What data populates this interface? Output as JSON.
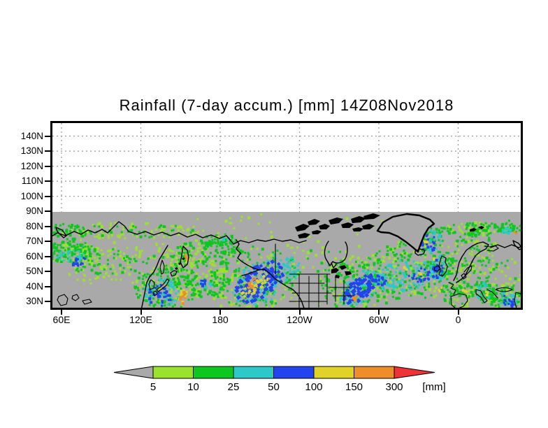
{
  "chart_data": {
    "type": "heatmap",
    "title": "Rainfall (7-day accum.) [mm] 14Z08Nov2018",
    "y_ticks": [
      "140N",
      "130N",
      "120N",
      "110N",
      "100N",
      "90N",
      "80N",
      "70N",
      "60N",
      "50N",
      "40N",
      "30N"
    ],
    "x_ticks": [
      "60E",
      "120E",
      "180",
      "120W",
      "60W",
      "0"
    ],
    "grid": "dotted",
    "no_data_fill": "#ffffff",
    "background_fill_below_90N": "#a9a9a9",
    "colorbar": {
      "labels": [
        "5",
        "10",
        "25",
        "50",
        "100",
        "150",
        "300"
      ],
      "unit": "[mm]",
      "levels_mm": [
        5,
        10,
        25,
        50,
        100,
        150,
        300
      ],
      "segment_colors": [
        "#9be22e",
        "#0cc81e",
        "#2dc9c9",
        "#2343ee",
        "#e0d229",
        "#ee8d2a"
      ],
      "below_min_color": "#a9a9a9",
      "above_max_color": "#ee3236"
    },
    "level_colors": {
      "p5": "#9be22e",
      "p10": "#0cc81e",
      "p25": "#2dc9c9",
      "p50": "#2343ee",
      "p100": "#e0d229",
      "p150": "#ee8d2a"
    },
    "rain_clusters_format": [
      "cx",
      "cy",
      "rx",
      "ry",
      "count",
      "level",
      "rot_deg(optional)",
      "speck(optional)"
    ],
    "rain_clusters": [
      [
        338,
        200,
        330,
        68,
        130,
        "p5"
      ],
      [
        110,
        157,
        115,
        12,
        80,
        "p5"
      ],
      [
        110,
        157,
        105,
        10,
        45,
        "p10"
      ],
      [
        25,
        160,
        30,
        14,
        45,
        "p10"
      ],
      [
        30,
        188,
        38,
        16,
        110,
        "p10"
      ],
      [
        32,
        190,
        42,
        18,
        60,
        "p5"
      ],
      [
        28,
        193,
        20,
        9,
        25,
        "p25"
      ],
      [
        42,
        202,
        13,
        7,
        16,
        "p50"
      ],
      [
        70,
        207,
        58,
        24,
        70,
        "p5"
      ],
      [
        73,
        202,
        50,
        20,
        40,
        "p10"
      ],
      [
        160,
        196,
        58,
        22,
        40,
        "p5"
      ],
      [
        150,
        206,
        40,
        15,
        18,
        "p10"
      ],
      [
        200,
        196,
        28,
        22,
        60,
        "p10"
      ],
      [
        204,
        198,
        30,
        24,
        45,
        "p5"
      ],
      [
        194,
        193,
        3,
        5,
        4,
        "p150"
      ],
      [
        196,
        201,
        4,
        4,
        5,
        "p100"
      ],
      [
        240,
        172,
        26,
        10,
        28,
        "p10"
      ],
      [
        165,
        240,
        45,
        30,
        140,
        "p10"
      ],
      [
        170,
        236,
        50,
        32,
        70,
        "p5"
      ],
      [
        160,
        246,
        26,
        20,
        55,
        "p25"
      ],
      [
        157,
        249,
        18,
        16,
        32,
        "p50"
      ],
      [
        191,
        253,
        5,
        10,
        10,
        "p150"
      ],
      [
        189,
        249,
        7,
        12,
        12,
        "p100"
      ],
      [
        221,
        231,
        6,
        6,
        9,
        "p50"
      ],
      [
        222,
        232,
        9,
        8,
        12,
        "p25"
      ],
      [
        227,
        236,
        34,
        17,
        60,
        "p10"
      ],
      [
        242,
        222,
        30,
        12,
        35,
        "p5"
      ],
      [
        290,
        222,
        68,
        45,
        150,
        "p10"
      ],
      [
        286,
        226,
        72,
        47,
        85,
        "p5"
      ],
      [
        303,
        228,
        48,
        30,
        100,
        "p25",
        -35
      ],
      [
        300,
        230,
        40,
        22,
        110,
        "p50",
        -35,
        4
      ],
      [
        292,
        237,
        26,
        7,
        36,
        "p100",
        -38
      ],
      [
        288,
        233,
        10,
        5,
        12,
        "p150",
        -38
      ],
      [
        250,
        170,
        16,
        8,
        22,
        "p10"
      ],
      [
        249,
        169,
        5,
        3,
        5,
        "p25"
      ],
      [
        240,
        166,
        2,
        2,
        2,
        "p100"
      ],
      [
        240,
        181,
        28,
        13,
        35,
        "p10"
      ],
      [
        345,
        211,
        13,
        18,
        26,
        "p25",
        -25
      ],
      [
        390,
        196,
        55,
        34,
        26,
        "p5"
      ],
      [
        396,
        206,
        45,
        24,
        13,
        "p10"
      ],
      [
        441,
        235,
        55,
        38,
        140,
        "p10"
      ],
      [
        446,
        231,
        60,
        40,
        70,
        "p5"
      ],
      [
        442,
        240,
        34,
        22,
        75,
        "p25",
        -40
      ],
      [
        443,
        240,
        28,
        14,
        75,
        "p50",
        -40,
        4
      ],
      [
        437,
        253,
        4,
        6,
        7,
        "p150"
      ],
      [
        472,
        227,
        9,
        8,
        13,
        "p50"
      ],
      [
        474,
        228,
        12,
        10,
        13,
        "p25"
      ],
      [
        515,
        214,
        68,
        42,
        160,
        "p10"
      ],
      [
        520,
        211,
        72,
        45,
        85,
        "p5"
      ],
      [
        505,
        222,
        45,
        22,
        85,
        "p25",
        -10
      ],
      [
        532,
        220,
        22,
        10,
        28,
        "p50",
        -15
      ],
      [
        542,
        175,
        14,
        12,
        22,
        "p50"
      ],
      [
        545,
        172,
        18,
        16,
        22,
        "p25"
      ],
      [
        540,
        169,
        22,
        20,
        28,
        "p10"
      ],
      [
        538,
        175,
        3,
        3,
        3,
        "p100"
      ],
      [
        508,
        212,
        3,
        3,
        3,
        "p100"
      ],
      [
        528,
        217,
        3,
        3,
        3,
        "p100"
      ],
      [
        558,
        241,
        3,
        3,
        3,
        "p100"
      ],
      [
        550,
        197,
        3,
        3,
        3,
        "p100"
      ],
      [
        540,
        160,
        25,
        13,
        35,
        "p10",
        25
      ],
      [
        560,
        207,
        18,
        22,
        55,
        "p10"
      ],
      [
        554,
        212,
        8,
        14,
        22,
        "p50"
      ],
      [
        556,
        210,
        12,
        18,
        28,
        "p25"
      ],
      [
        580,
        245,
        22,
        20,
        45,
        "p10"
      ],
      [
        586,
        248,
        25,
        20,
        28,
        "p5"
      ],
      [
        593,
        244,
        3,
        3,
        3,
        "p100"
      ],
      [
        618,
        242,
        16,
        20,
        45,
        "p10"
      ],
      [
        620,
        245,
        10,
        14,
        18,
        "p25"
      ],
      [
        625,
        246,
        3,
        3,
        3,
        "p100"
      ],
      [
        605,
        185,
        28,
        35,
        55,
        "p10"
      ],
      [
        610,
        186,
        30,
        38,
        38,
        "p5"
      ],
      [
        615,
        155,
        60,
        9,
        70,
        "p10"
      ],
      [
        620,
        153,
        58,
        8,
        45,
        "p5"
      ],
      [
        652,
        157,
        8,
        4,
        9,
        "p25"
      ],
      [
        666,
        159,
        2,
        2,
        2,
        "p150"
      ],
      [
        630,
        215,
        45,
        35,
        35,
        "p5"
      ],
      [
        640,
        221,
        35,
        25,
        18,
        "p10"
      ],
      [
        650,
        252,
        26,
        18,
        60,
        "p10"
      ],
      [
        648,
        250,
        28,
        20,
        35,
        "p5"
      ],
      [
        655,
        255,
        16,
        12,
        30,
        "p25"
      ],
      [
        656,
        257,
        10,
        9,
        18,
        "p50"
      ],
      [
        660,
        150,
        18,
        8,
        20,
        "p10"
      ]
    ]
  }
}
